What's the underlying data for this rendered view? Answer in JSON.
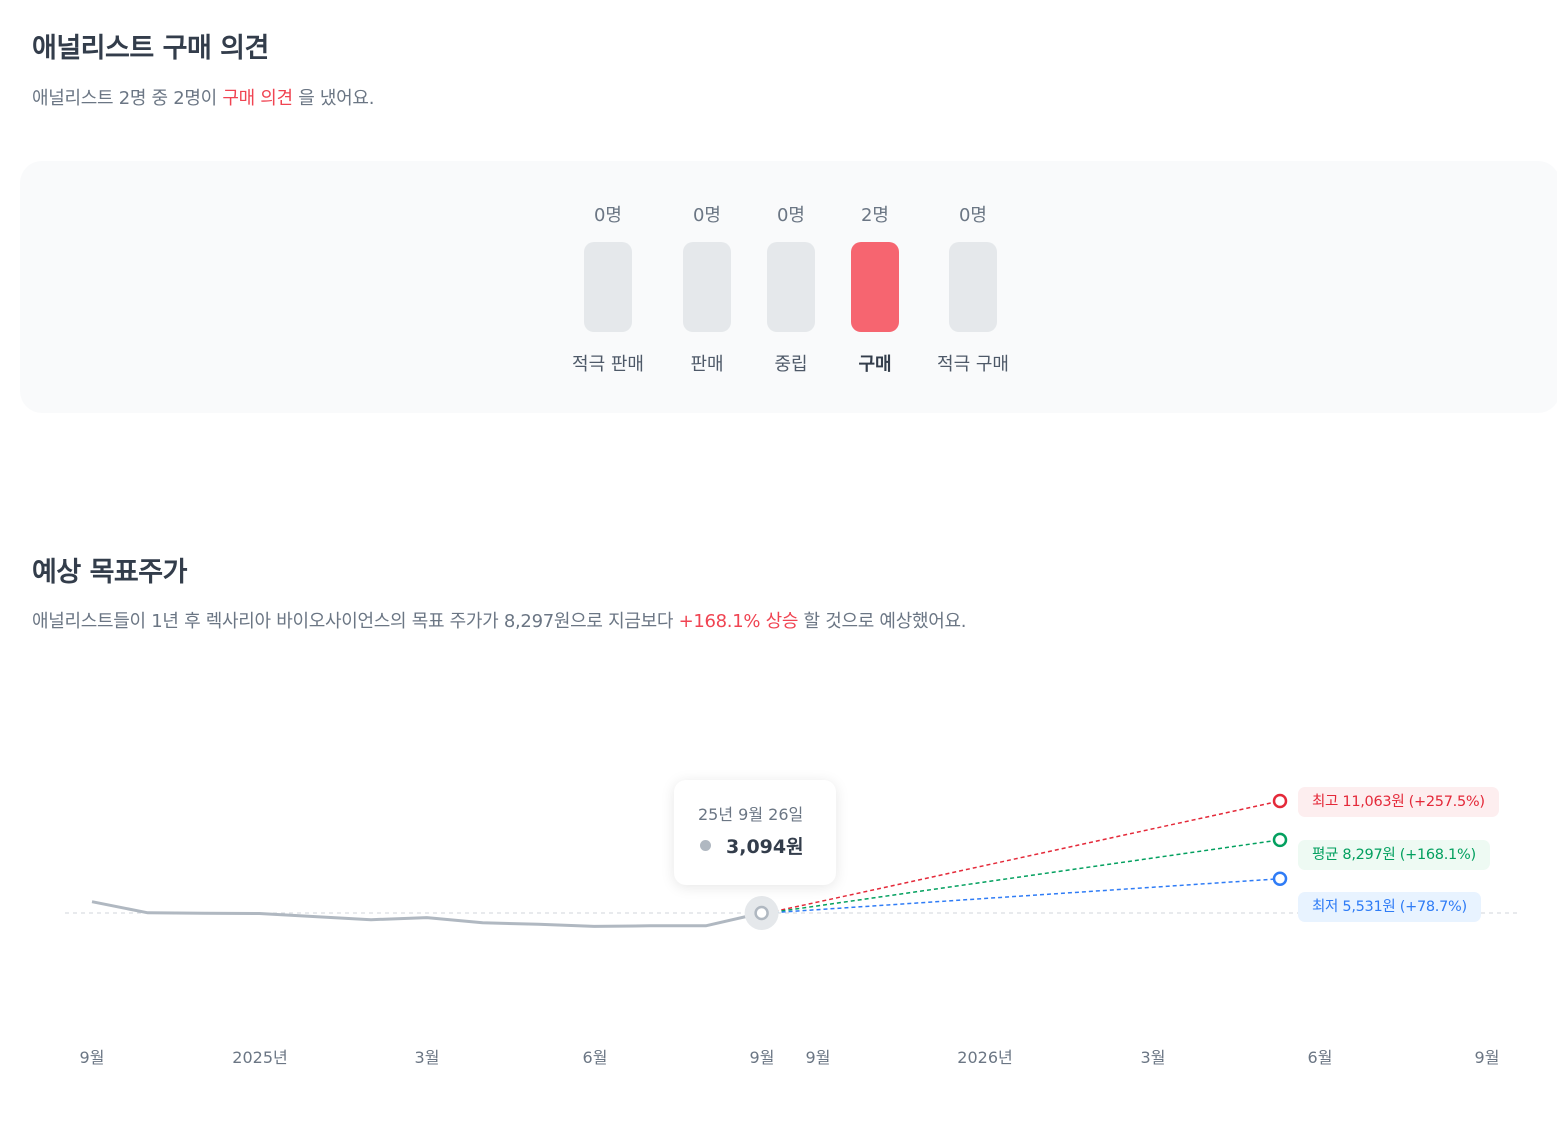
{
  "opinion": {
    "title": "애널리스트 구매 의견",
    "summary_prefix": "애널리스트 2명 중 2명이 ",
    "summary_highlight": "구매 의견",
    "summary_suffix": " 을 냈어요.",
    "columns": [
      {
        "count": "0명",
        "label": "적극 판매",
        "value": 0
      },
      {
        "count": "0명",
        "label": "판매",
        "value": 0
      },
      {
        "count": "0명",
        "label": "중립",
        "value": 0
      },
      {
        "count": "2명",
        "label": "구매",
        "value": 2
      },
      {
        "count": "0명",
        "label": "적극 구매",
        "value": 0
      }
    ]
  },
  "target": {
    "title": "예상 목표주가",
    "summary_prefix": "애널리스트들이 1년 후 렉사리아 바이오사이언스의 목표 주가가 8,297원으로 지금보다 ",
    "summary_highlight": "+168.1% 상승",
    "summary_suffix": " 할 것으로 예상했어요."
  },
  "tooltip": {
    "date": "25년 9월 26일",
    "price": "3,094원"
  },
  "badges": {
    "high": "최고 11,063원 (+257.5%)",
    "avg": "평균 8,297원 (+168.1%)",
    "low": "최저 5,531원 (+78.7%)"
  },
  "colors": {
    "high": "#e42939",
    "avg": "#03a05f",
    "low": "#2f7cf6",
    "price_line": "#b0b8c1",
    "highlight": "#f04452"
  },
  "chart_data": {
    "type": "line",
    "title": "예상 목표주가",
    "series": [
      {
        "name": "주가",
        "x": [
          "24-09",
          "24-10",
          "24-11",
          "24-12",
          "25-01",
          "25-02",
          "25-03",
          "25-04",
          "25-05",
          "25-06",
          "25-07",
          "25-08",
          "25-09"
        ],
        "values": [
          3900,
          3110,
          3070,
          3060,
          2840,
          2620,
          2770,
          2400,
          2290,
          2140,
          2180,
          2180,
          3094
        ]
      },
      {
        "name": "최고",
        "x": [
          "25-09",
          "26-06"
        ],
        "values": [
          3094,
          11063
        ]
      },
      {
        "name": "평균",
        "x": [
          "25-09",
          "26-06"
        ],
        "values": [
          3094,
          8297
        ]
      },
      {
        "name": "최저",
        "x": [
          "25-09",
          "26-06"
        ],
        "values": [
          3094,
          5531
        ]
      }
    ],
    "x_tick_labels_past": [
      "9월",
      "2025년",
      "3월",
      "6월",
      "9월"
    ],
    "x_tick_labels_future": [
      "9월",
      "2026년",
      "3월",
      "6월",
      "9월"
    ],
    "reference_value": 3094
  }
}
